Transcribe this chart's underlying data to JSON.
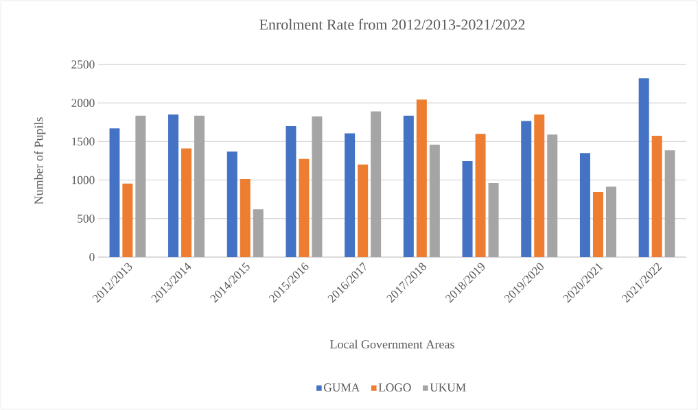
{
  "chart_data": {
    "type": "bar",
    "title": "Enrolment Rate from 2012/2013-2021/2022",
    "xlabel": "Local Government Areas",
    "ylabel": "Number of Pupils",
    "categories": [
      "2012/2013",
      "2013/2014",
      "2014/2015",
      "2015/2016",
      "2016/2017",
      "2017/2018",
      "2018/2019",
      "2019/2020",
      "2020/2021",
      "2021/2022"
    ],
    "series": [
      {
        "name": "GUMA",
        "color": "#4472c4",
        "values": [
          1670,
          1850,
          1370,
          1700,
          1605,
          1835,
          1245,
          1765,
          1350,
          2320
        ]
      },
      {
        "name": "LOGO",
        "color": "#ed7d31",
        "values": [
          955,
          1410,
          1015,
          1275,
          1200,
          2045,
          1600,
          1850,
          845,
          1575
        ]
      },
      {
        "name": "UKUM",
        "color": "#a5a5a5",
        "values": [
          1835,
          1835,
          620,
          1825,
          1890,
          1460,
          960,
          1590,
          915,
          1385
        ]
      }
    ],
    "ylim": [
      0,
      2500
    ],
    "yticks": [
      0,
      500,
      1000,
      1500,
      2000,
      2500
    ],
    "grid": "y",
    "legend": "bottom"
  }
}
